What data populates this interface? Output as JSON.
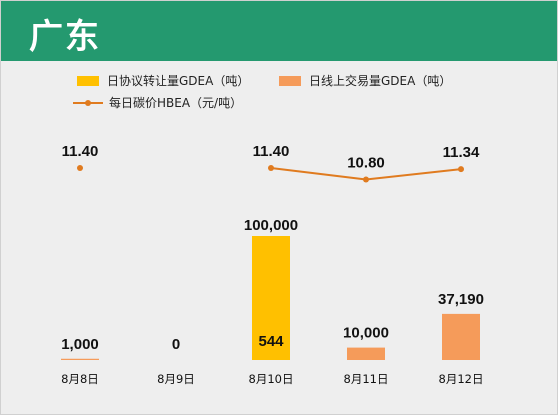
{
  "header": {
    "title": "广东"
  },
  "colors": {
    "header_bg": "#24996f",
    "agreement": "#ffc000",
    "online": "#f59b5a",
    "price": "#e07b1f"
  },
  "legend": {
    "agreement": "日协议转让量GDEA（吨）",
    "online": "日线上交易量GDEA（吨）",
    "price": "每日碳价HBEA（元/吨）"
  },
  "chart_data": {
    "type": "bar",
    "categories": [
      "8月8日",
      "8月9日",
      "8月10日",
      "8月11日",
      "8月12日"
    ],
    "series": [
      {
        "name": "日协议转让量GDEA（吨）",
        "type": "bar",
        "values": [
          0,
          0,
          100000,
          0,
          0
        ],
        "labels": [
          "",
          "",
          "100,000",
          "",
          ""
        ]
      },
      {
        "name": "日线上交易量GDEA（吨）",
        "type": "bar",
        "values": [
          1000,
          0,
          544,
          10000,
          37190
        ],
        "labels": [
          "1,000",
          "0",
          "544",
          "10,000",
          "37,190"
        ]
      },
      {
        "name": "每日碳价HBEA（元/吨）",
        "type": "line",
        "values": [
          11.4,
          null,
          11.4,
          10.8,
          11.34
        ],
        "labels": [
          "11.40",
          "",
          "11.40",
          "10.80",
          "11.34"
        ]
      }
    ],
    "legend_position": "top",
    "grid": false
  }
}
